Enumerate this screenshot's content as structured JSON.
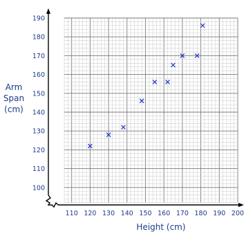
{
  "chart_data": {
    "type": "scatter",
    "title": "",
    "xlabel": "Height (cm)",
    "ylabel": [
      "Arm",
      "Span",
      "(cm)"
    ],
    "xlim": [
      100,
      200
    ],
    "ylim": [
      90,
      190
    ],
    "x_ticks": [
      110,
      120,
      130,
      140,
      150,
      160,
      170,
      180,
      190,
      200
    ],
    "y_ticks": [
      100,
      110,
      120,
      130,
      140,
      150,
      160,
      170,
      180,
      190
    ],
    "axis_break": "zigzag at origin",
    "grid": "major every 10, minor every 2",
    "marker": "cross",
    "marker_color": "#2233cc",
    "points": [
      {
        "x": 120,
        "y": 122
      },
      {
        "x": 130,
        "y": 128
      },
      {
        "x": 138,
        "y": 132
      },
      {
        "x": 148,
        "y": 146
      },
      {
        "x": 155,
        "y": 156
      },
      {
        "x": 162,
        "y": 156
      },
      {
        "x": 165,
        "y": 165
      },
      {
        "x": 170,
        "y": 170
      },
      {
        "x": 178,
        "y": 170
      },
      {
        "x": 181,
        "y": 186
      }
    ]
  }
}
